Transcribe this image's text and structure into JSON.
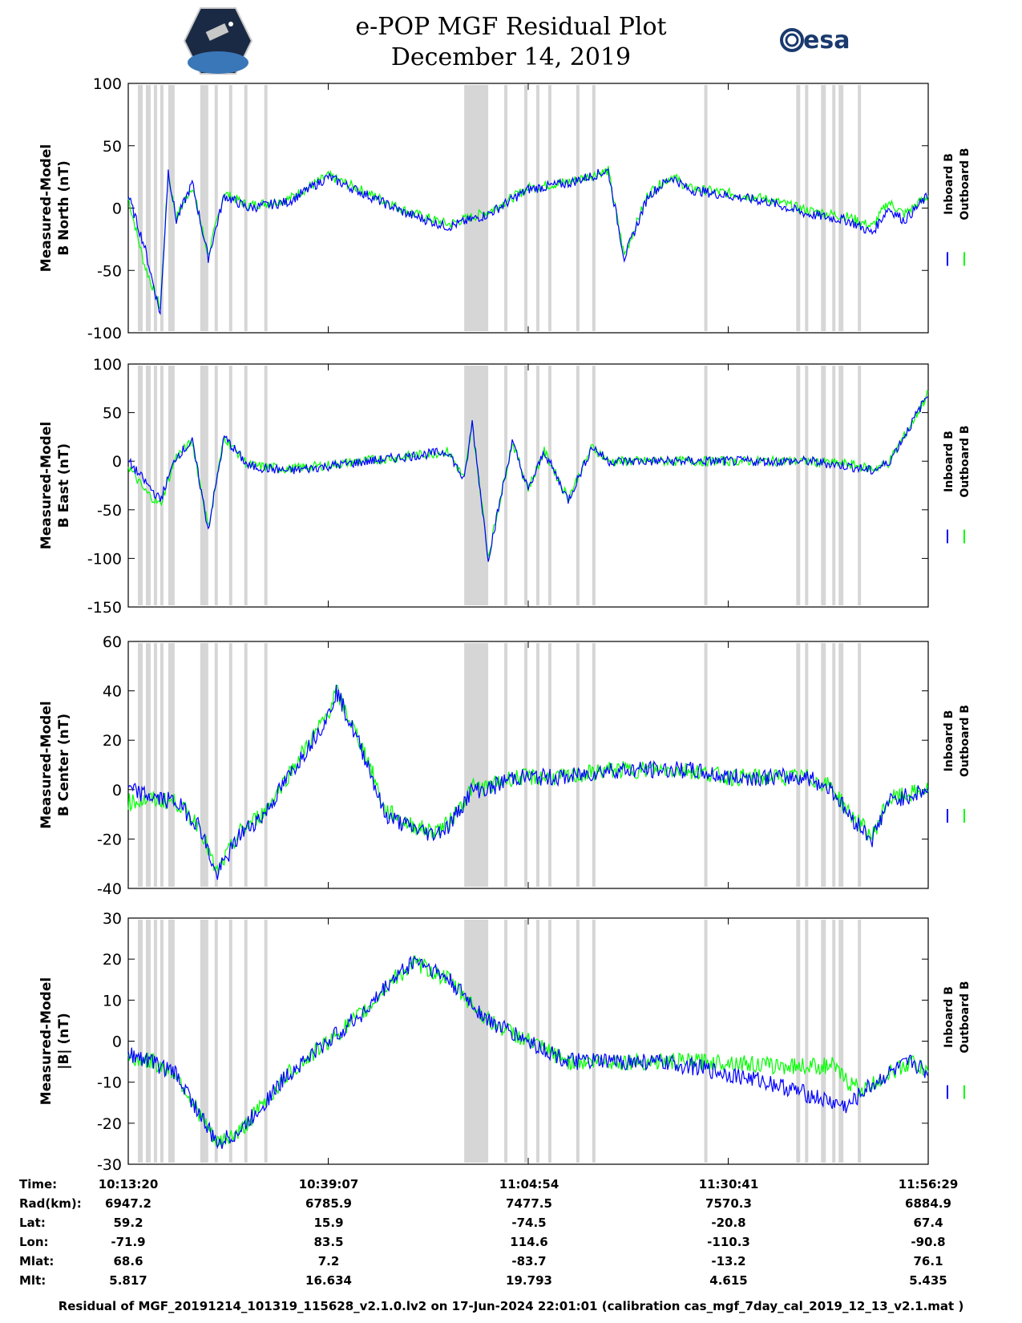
{
  "header": {
    "title": "e-POP MGF Residual Plot",
    "date": "December 14, 2019",
    "logo_left": "cassiope-mission-logo",
    "logo_right_text": "esa"
  },
  "colors": {
    "inboard": "#0000ff",
    "outboard": "#00ff00",
    "shade": "#d6d6d6"
  },
  "chart_data": [
    {
      "type": "line",
      "ylabel_line1": "Measured-Model",
      "ylabel_line2": "B North (nT)",
      "ylim": [
        -100,
        100
      ],
      "yticks": [
        -100,
        -50,
        0,
        50,
        100
      ],
      "legend": [
        "Inboard B",
        "Outboard B"
      ],
      "legend_placement": "right",
      "series": [
        {
          "name": "Inboard B",
          "x_min": [
            0,
            2,
            4,
            5,
            6,
            8,
            10,
            12,
            15,
            20,
            25,
            30,
            35,
            40,
            45,
            50,
            55,
            60,
            62,
            65,
            68,
            70,
            75,
            80,
            85,
            90,
            93,
            95,
            97,
            100
          ],
          "values": [
            10,
            -30,
            -85,
            30,
            -10,
            20,
            -40,
            10,
            0,
            5,
            25,
            10,
            -5,
            -15,
            -5,
            15,
            20,
            30,
            -40,
            10,
            25,
            15,
            10,
            5,
            -5,
            -10,
            -20,
            0,
            -10,
            10
          ]
        },
        {
          "name": "Outboard B",
          "x_min": [
            0,
            2,
            4,
            5,
            6,
            8,
            10,
            12,
            15,
            20,
            25,
            30,
            35,
            40,
            45,
            50,
            55,
            60,
            62,
            65,
            68,
            70,
            75,
            80,
            85,
            90,
            93,
            95,
            97,
            100
          ],
          "values": [
            8,
            -45,
            -80,
            28,
            -8,
            18,
            -38,
            12,
            2,
            7,
            26,
            12,
            -3,
            -13,
            -3,
            16,
            21,
            30,
            -38,
            12,
            26,
            16,
            12,
            7,
            -2,
            -7,
            -15,
            5,
            -5,
            10
          ]
        }
      ]
    },
    {
      "type": "line",
      "ylabel_line1": "Measured-Model",
      "ylabel_line2": "B East (nT)",
      "ylim": [
        -150,
        100
      ],
      "yticks": [
        -150,
        -100,
        -50,
        0,
        50,
        100
      ],
      "legend": [
        "Inboard B",
        "Outboard B"
      ],
      "legend_placement": "right",
      "series": [
        {
          "name": "Inboard B",
          "x_min": [
            0,
            2,
            4,
            6,
            8,
            10,
            12,
            15,
            20,
            25,
            30,
            35,
            40,
            42,
            43,
            45,
            48,
            50,
            52,
            55,
            58,
            60,
            65,
            70,
            75,
            80,
            85,
            90,
            93,
            95,
            98,
            100
          ],
          "values": [
            0,
            -20,
            -40,
            5,
            20,
            -70,
            25,
            -5,
            -10,
            -5,
            0,
            5,
            10,
            -20,
            40,
            -100,
            20,
            -30,
            10,
            -40,
            15,
            0,
            0,
            0,
            0,
            0,
            0,
            -5,
            -10,
            -2,
            40,
            70
          ]
        },
        {
          "name": "Outboard B",
          "x_min": [
            0,
            2,
            4,
            6,
            8,
            10,
            12,
            15,
            20,
            25,
            30,
            35,
            40,
            42,
            43,
            45,
            48,
            50,
            52,
            55,
            58,
            60,
            65,
            70,
            75,
            80,
            85,
            90,
            93,
            95,
            98,
            100
          ],
          "values": [
            -5,
            -30,
            -45,
            5,
            20,
            -68,
            25,
            -4,
            -8,
            -4,
            1,
            5,
            10,
            -18,
            38,
            -98,
            20,
            -28,
            10,
            -38,
            15,
            0,
            0,
            0,
            0,
            0,
            0,
            -3,
            -8,
            -2,
            40,
            70
          ]
        }
      ]
    },
    {
      "type": "line",
      "ylabel_line1": "Measured-Model",
      "ylabel_line2": "B Center (nT)",
      "ylim": [
        -40,
        60
      ],
      "yticks": [
        -40,
        -20,
        0,
        20,
        40,
        60
      ],
      "legend": [
        "Inboard B",
        "Outboard B"
      ],
      "legend_placement": "right",
      "series": [
        {
          "name": "Inboard B",
          "x_min": [
            0,
            3,
            6,
            9,
            11,
            14,
            17,
            20,
            23,
            25,
            26,
            28,
            30,
            32,
            35,
            38,
            40,
            43,
            45,
            48,
            50,
            55,
            60,
            65,
            70,
            75,
            80,
            85,
            88,
            90,
            93,
            95,
            100
          ],
          "values": [
            0,
            -3,
            -5,
            -15,
            -35,
            -18,
            -10,
            5,
            20,
            30,
            40,
            25,
            10,
            -10,
            -15,
            -18,
            -15,
            0,
            0,
            5,
            5,
            5,
            8,
            8,
            8,
            5,
            5,
            5,
            0,
            -10,
            -20,
            -5,
            0
          ]
        },
        {
          "name": "Outboard B",
          "x_min": [
            0,
            3,
            6,
            9,
            11,
            14,
            17,
            20,
            23,
            25,
            26,
            28,
            30,
            32,
            35,
            38,
            40,
            43,
            45,
            48,
            50,
            55,
            60,
            65,
            70,
            75,
            80,
            85,
            88,
            90,
            93,
            95,
            100
          ],
          "values": [
            -5,
            -4,
            -5,
            -15,
            -34,
            -17,
            -9,
            6,
            21,
            31,
            40,
            26,
            12,
            -8,
            -14,
            -17,
            -14,
            1,
            1,
            5,
            5,
            5,
            8,
            8,
            8,
            5,
            5,
            5,
            1,
            -9,
            -19,
            -4,
            0
          ]
        }
      ]
    },
    {
      "type": "line",
      "ylabel_line1": "Measured-Model",
      "ylabel_line2": "|B| (nT)",
      "ylim": [
        -30,
        30
      ],
      "yticks": [
        -30,
        -20,
        -10,
        0,
        10,
        20,
        30
      ],
      "legend": [
        "Inboard B",
        "Outboard B"
      ],
      "legend_placement": "right",
      "series": [
        {
          "name": "Inboard B",
          "x_min": [
            0,
            3,
            6,
            9,
            11,
            14,
            17,
            20,
            25,
            30,
            33,
            36,
            40,
            45,
            50,
            55,
            60,
            65,
            70,
            75,
            80,
            85,
            88,
            90,
            92,
            95,
            98,
            100
          ],
          "values": [
            -3,
            -5,
            -8,
            -18,
            -25,
            -22,
            -15,
            -8,
            0,
            8,
            15,
            20,
            15,
            5,
            0,
            -5,
            -5,
            -5,
            -6,
            -8,
            -10,
            -13,
            -15,
            -16,
            -12,
            -8,
            -5,
            -8
          ]
        },
        {
          "name": "Outboard B",
          "x_min": [
            0,
            3,
            6,
            9,
            11,
            14,
            17,
            20,
            25,
            30,
            33,
            36,
            40,
            45,
            50,
            55,
            60,
            65,
            70,
            75,
            80,
            85,
            88,
            90,
            92,
            95,
            98,
            100
          ],
          "values": [
            -4,
            -5,
            -8,
            -18,
            -25,
            -22,
            -15,
            -8,
            0,
            8,
            15,
            19,
            15,
            5,
            0,
            -5,
            -5,
            -5,
            -5,
            -5,
            -6,
            -6,
            -6,
            -10,
            -12,
            -8,
            -5,
            -8
          ]
        }
      ]
    }
  ],
  "time_axis": {
    "rows": [
      {
        "label": "Time:",
        "values": [
          "10:13:20",
          "10:39:07",
          "11:04:54",
          "11:30:41",
          "11:56:29"
        ]
      },
      {
        "label": "Rad(km):",
        "values": [
          "6947.2",
          "6785.9",
          "7477.5",
          "7570.3",
          "6884.9"
        ]
      },
      {
        "label": "Lat:",
        "values": [
          "59.2",
          "15.9",
          "-74.5",
          "-20.8",
          "67.4"
        ]
      },
      {
        "label": "Lon:",
        "values": [
          "-71.9",
          "83.5",
          "114.6",
          "-110.3",
          "-90.8"
        ]
      },
      {
        "label": "Mlat:",
        "values": [
          "68.6",
          "7.2",
          "-83.7",
          "-13.2",
          "76.1"
        ]
      },
      {
        "label": "Mlt:",
        "values": [
          "5.817",
          "16.634",
          "19.793",
          "4.615",
          "5.435"
        ]
      }
    ]
  },
  "footer": "Residual of MGF_20191214_101319_115628_v2.1.0.lv2 on 17-Jun-2024 22:01:01 (calibration cas_mgf_7day_cal_2019_12_13_v2.1.mat )"
}
